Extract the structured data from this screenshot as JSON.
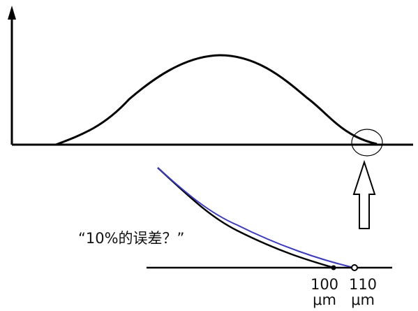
{
  "annotation": {
    "question": "“10%的误差？”"
  },
  "zoom_axis": {
    "ticks": [
      {
        "value": "100",
        "unit": "μm"
      },
      {
        "value": "110",
        "unit": "μm"
      }
    ]
  },
  "colors": {
    "ink": "#000000",
    "blue_curve": "#3b3bbf"
  }
}
